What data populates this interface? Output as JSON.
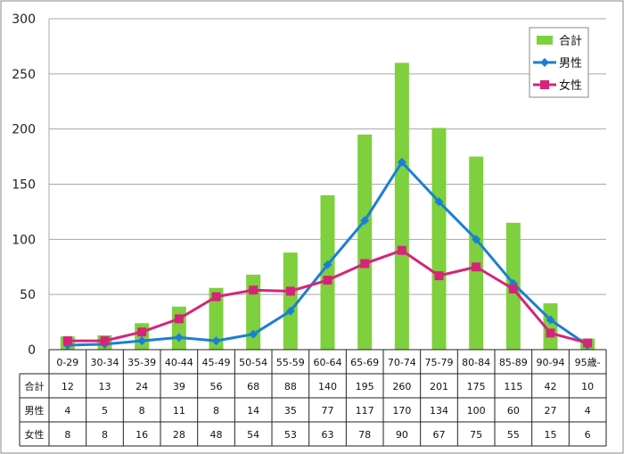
{
  "chart_data": {
    "type": "bar",
    "categories": [
      "0-29",
      "30-34",
      "35-39",
      "40-44",
      "45-49",
      "50-54",
      "55-59",
      "60-64",
      "65-69",
      "70-74",
      "75-79",
      "80-84",
      "85-89",
      "90-94",
      "95歳-"
    ],
    "series": [
      {
        "name": "合計",
        "kind": "bar",
        "color": "#7ed03e",
        "values": [
          12,
          13,
          24,
          39,
          56,
          68,
          88,
          140,
          195,
          260,
          201,
          175,
          115,
          42,
          10
        ]
      },
      {
        "name": "男性",
        "kind": "line",
        "marker": "diamond",
        "color": "#1a7fd4",
        "values": [
          4,
          5,
          8,
          11,
          8,
          14,
          35,
          77,
          117,
          170,
          134,
          100,
          60,
          27,
          4
        ]
      },
      {
        "name": "女性",
        "kind": "line",
        "marker": "square",
        "color": "#d6247a",
        "values": [
          8,
          8,
          16,
          28,
          48,
          54,
          53,
          63,
          78,
          90,
          67,
          75,
          55,
          15,
          6
        ]
      }
    ],
    "ylim": [
      0,
      300
    ],
    "yticks": [
      0,
      50,
      100,
      150,
      200,
      250,
      300
    ],
    "grid": "horizontal",
    "legend": "top-right",
    "data_table": true
  }
}
